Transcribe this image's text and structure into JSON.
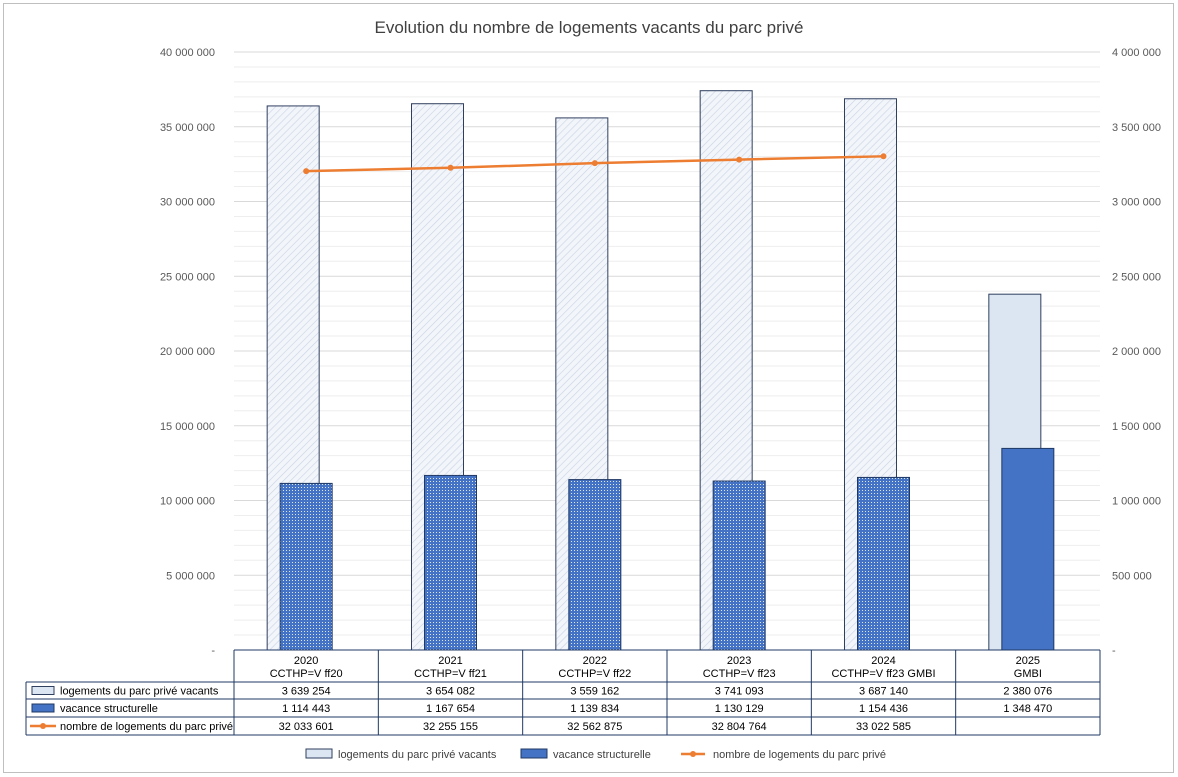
{
  "chart_data": {
    "type": "bar",
    "title": "Evolution du nombre de logements vacants du parc privé",
    "categories": [
      {
        "year": "2020",
        "source": "CCTHP=V ff20"
      },
      {
        "year": "2021",
        "source": "CCTHP=V ff21"
      },
      {
        "year": "2022",
        "source": "CCTHP=V ff22"
      },
      {
        "year": "2023",
        "source": "CCTHP=V ff23"
      },
      {
        "year": "2024",
        "source": "CCTHP=V ff23 GMBI"
      },
      {
        "year": "2025",
        "source": "GMBI"
      }
    ],
    "series": [
      {
        "name": "logements du parc privé vacants",
        "type": "bar",
        "axis": "right",
        "color": "#dce6f2",
        "border": "#2f3f5f",
        "values": [
          3639254,
          3654082,
          3559162,
          3741093,
          3687140,
          2380076
        ],
        "labels": [
          "3 639 254",
          "3 654 082",
          "3 559 162",
          "3 741 093",
          "3 687 140",
          "2 380 076"
        ]
      },
      {
        "name": "vacance structurelle",
        "type": "bar",
        "axis": "right",
        "color": "#4472c4",
        "border": "#1f3864",
        "values": [
          1114443,
          1167654,
          1139834,
          1130129,
          1154436,
          1348470
        ],
        "labels": [
          "1 114 443",
          "1 167 654",
          "1 139 834",
          "1 130 129",
          "1 154 436",
          "1 348 470"
        ]
      },
      {
        "name": "nombre de logements du parc privé",
        "type": "line",
        "axis": "left",
        "color": "#ed7d31",
        "values": [
          32033601,
          32255155,
          32562875,
          32804764,
          33022585,
          null
        ],
        "labels": [
          "32 033 601",
          "32 255 155",
          "32 562 875",
          "32 804 764",
          "33 022 585",
          ""
        ]
      }
    ],
    "y_left": {
      "ylim": [
        0,
        40000000
      ],
      "ticks": [
        {
          "value": 0,
          "label": "-"
        },
        {
          "value": 5000000,
          "label": "5 000 000"
        },
        {
          "value": 10000000,
          "label": "10 000 000"
        },
        {
          "value": 15000000,
          "label": "15 000 000"
        },
        {
          "value": 20000000,
          "label": "20 000 000"
        },
        {
          "value": 25000000,
          "label": "25 000 000"
        },
        {
          "value": 30000000,
          "label": "30 000 000"
        },
        {
          "value": 35000000,
          "label": "35 000 000"
        },
        {
          "value": 40000000,
          "label": "40 000 000"
        }
      ]
    },
    "y_right": {
      "ylim": [
        0,
        4000000
      ],
      "ticks": [
        {
          "value": 0,
          "label": "-"
        },
        {
          "value": 500000,
          "label": "500 000"
        },
        {
          "value": 1000000,
          "label": "1 000 000"
        },
        {
          "value": 1500000,
          "label": "1 500 000"
        },
        {
          "value": 2000000,
          "label": "2 000 000"
        },
        {
          "value": 2500000,
          "label": "2 500 000"
        },
        {
          "value": 3000000,
          "label": "3 000 000"
        },
        {
          "value": 3500000,
          "label": "3 500 000"
        },
        {
          "value": 4000000,
          "label": "4 000 000"
        }
      ]
    },
    "grid": true,
    "data_table": true,
    "legend": "bottom"
  }
}
